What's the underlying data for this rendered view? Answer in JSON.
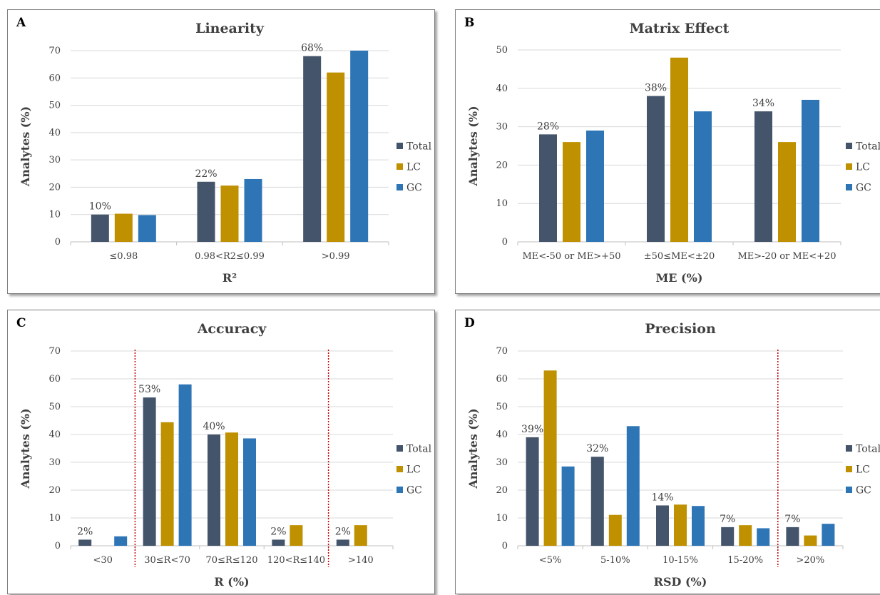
{
  "colors": {
    "Total": "#44546a",
    "LC": "#bf9000",
    "GC": "#2e75b6",
    "divider": "#c00000"
  },
  "legend": [
    "Total",
    "LC",
    "GC"
  ],
  "chart_data": [
    {
      "panel": "A",
      "type": "bar",
      "title": "Linearity",
      "xlabel": "R²",
      "ylabel": "Analytes (%)",
      "ylim": [
        0,
        70
      ],
      "yticks": [
        0,
        10,
        20,
        30,
        40,
        50,
        60,
        70
      ],
      "categories": [
        "≤0.98",
        "0.98<R2≤0.99",
        ">0.99"
      ],
      "series": [
        {
          "name": "Total",
          "values": [
            10,
            22,
            68
          ]
        },
        {
          "name": "LC",
          "values": [
            10.3,
            20.6,
            62
          ]
        },
        {
          "name": "GC",
          "values": [
            9.8,
            23,
            70
          ]
        }
      ],
      "data_labels": [
        "10%",
        "22%",
        "68%"
      ],
      "dividers": []
    },
    {
      "panel": "B",
      "type": "bar",
      "title": "Matrix Effect",
      "xlabel": "ME (%)",
      "ylabel": "Analytes (%)",
      "ylim": [
        0,
        50
      ],
      "yticks": [
        0,
        10,
        20,
        30,
        40,
        50
      ],
      "categories": [
        "ME<-50 or ME>+50",
        "±50≤ME<±20",
        "ME>-20 or ME<+20"
      ],
      "series": [
        {
          "name": "Total",
          "values": [
            28,
            38,
            34
          ]
        },
        {
          "name": "LC",
          "values": [
            26,
            48,
            26
          ]
        },
        {
          "name": "GC",
          "values": [
            29,
            34,
            37
          ]
        }
      ],
      "data_labels": [
        "28%",
        "38%",
        "34%"
      ],
      "dividers": []
    },
    {
      "panel": "C",
      "type": "bar",
      "title": "Accuracy",
      "xlabel": "R (%)",
      "ylabel": "Analytes (%)",
      "ylim": [
        0,
        70
      ],
      "yticks": [
        0,
        10,
        20,
        30,
        40,
        50,
        60,
        70
      ],
      "categories": [
        "<30",
        "30≤R<70",
        "70≤R≤120",
        "120<R≤140",
        ">140"
      ],
      "series": [
        {
          "name": "Total",
          "values": [
            2.2,
            53.3,
            40,
            2.2,
            2.2
          ]
        },
        {
          "name": "LC",
          "values": [
            0,
            44.4,
            40.7,
            7.4,
            7.4
          ]
        },
        {
          "name": "GC",
          "values": [
            3.4,
            58,
            38.6,
            0,
            0
          ]
        }
      ],
      "data_labels": [
        "2%",
        "53%",
        "40%",
        "2%",
        "2%"
      ],
      "dividers": [
        1,
        4
      ]
    },
    {
      "panel": "D",
      "type": "bar",
      "title": "Precision",
      "xlabel": "RSD (%)",
      "ylabel": "Analytes (%)",
      "ylim": [
        0,
        70
      ],
      "yticks": [
        0,
        10,
        20,
        30,
        40,
        50,
        60,
        70
      ],
      "categories": [
        "<5%",
        "5-10%",
        "10-15%",
        "15-20%",
        ">20%"
      ],
      "series": [
        {
          "name": "Total",
          "values": [
            39,
            32,
            14.5,
            6.7,
            6.7
          ]
        },
        {
          "name": "LC",
          "values": [
            63,
            11.1,
            14.8,
            7.4,
            3.7
          ]
        },
        {
          "name": "GC",
          "values": [
            28.5,
            43,
            14.3,
            6.3,
            7.9
          ]
        }
      ],
      "data_labels": [
        "39%",
        "32%",
        "14%",
        "7%",
        "7%"
      ],
      "dividers": [
        4
      ]
    }
  ]
}
